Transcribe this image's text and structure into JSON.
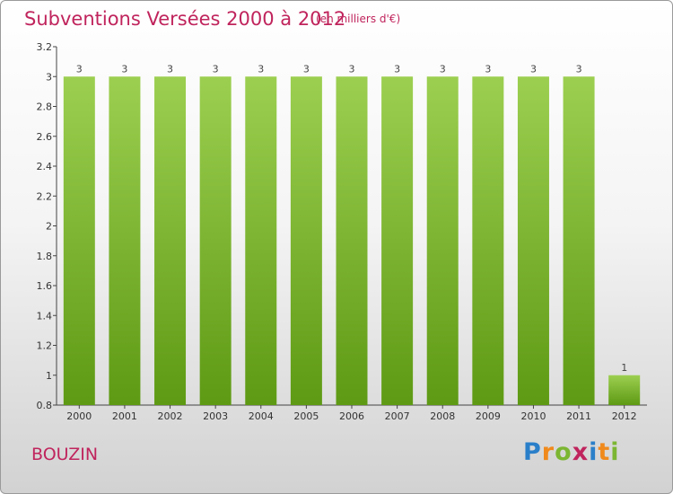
{
  "title": "Subventions Versées 2000 à 2012",
  "subtitle": "(en milliers d'€)",
  "commune": "BOUZIN",
  "logo": {
    "letters": [
      "P",
      "r",
      "o",
      "x",
      "i",
      "t",
      "i"
    ],
    "colors": [
      "#2a7fc9",
      "#f08a1c",
      "#7cb632",
      "#c0245c",
      "#2a7fc9",
      "#f08a1c",
      "#7cb632"
    ]
  },
  "colors": {
    "bar_top": "#9ccf50",
    "bar_bottom": "#5e9a14",
    "title": "#c0245c"
  },
  "chart_data": {
    "type": "bar",
    "title": "Subventions Versées 2000 à 2012",
    "subtitle": "(en milliers d'€)",
    "categories": [
      "2000",
      "2001",
      "2002",
      "2003",
      "2004",
      "2005",
      "2006",
      "2007",
      "2008",
      "2009",
      "2010",
      "2011",
      "2012"
    ],
    "values": [
      3,
      3,
      3,
      3,
      3,
      3,
      3,
      3,
      3,
      3,
      3,
      3,
      1
    ],
    "data_labels": [
      "3",
      "3",
      "3",
      "3",
      "3",
      "3",
      "3",
      "3",
      "3",
      "3",
      "3",
      "3",
      "1"
    ],
    "ylim": [
      0.8,
      3.2
    ],
    "yticks": [
      0.8,
      1,
      1.2,
      1.4,
      1.6,
      1.8,
      2,
      2.2,
      2.4,
      2.6,
      2.8,
      3,
      3.2
    ],
    "ytick_labels": [
      "0.8",
      "1",
      "1.2",
      "1.4",
      "1.6",
      "1.8",
      "2",
      "2.2",
      "2.4",
      "2.6",
      "2.8",
      "3",
      "3.2"
    ],
    "grid": false,
    "legend": "none"
  }
}
